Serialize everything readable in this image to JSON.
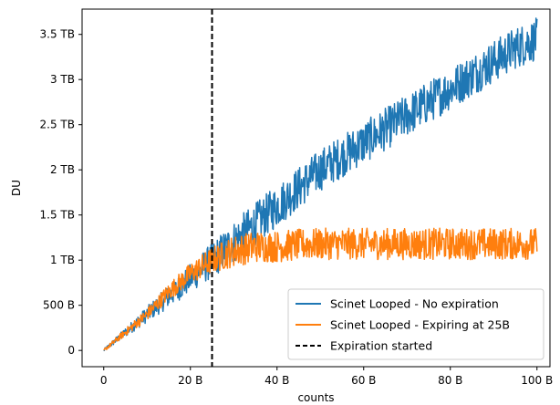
{
  "chart_data": {
    "type": "line",
    "title": "",
    "xlabel": "counts",
    "ylabel": "DU",
    "xlim": [
      -5,
      103
    ],
    "ylim": [
      -0.18,
      3.78
    ],
    "x_ticks": [
      {
        "value": 0,
        "label": "0"
      },
      {
        "value": 20,
        "label": "20 B"
      },
      {
        "value": 40,
        "label": "40 B"
      },
      {
        "value": 60,
        "label": "60 B"
      },
      {
        "value": 80,
        "label": "80 B"
      },
      {
        "value": 100,
        "label": "100 B"
      }
    ],
    "y_ticks": [
      {
        "value": 0,
        "label": "0"
      },
      {
        "value": 0.5,
        "label": "500 B"
      },
      {
        "value": 1,
        "label": "1 TB"
      },
      {
        "value": 1.5,
        "label": "1.5 TB"
      },
      {
        "value": 2,
        "label": "2 TB"
      },
      {
        "value": 2.5,
        "label": "2.5 TB"
      },
      {
        "value": 3,
        "label": "3 TB"
      },
      {
        "value": 3.5,
        "label": "3.5 TB"
      }
    ],
    "grid": false,
    "legend_position": "lower-right",
    "series": [
      {
        "name": "Scinet Looped - No expiration",
        "color": "#1f77b4",
        "x": [
          0,
          5,
          10,
          15,
          20,
          25,
          30,
          35,
          40,
          45,
          50,
          55,
          60,
          65,
          70,
          75,
          80,
          85,
          90,
          95,
          100
        ],
        "y": [
          0,
          0.2,
          0.4,
          0.6,
          0.8,
          1.0,
          1.2,
          1.4,
          1.6,
          1.8,
          2.0,
          2.15,
          2.3,
          2.45,
          2.6,
          2.75,
          2.9,
          3.05,
          3.2,
          3.35,
          3.45
        ]
      },
      {
        "name": "Scinet Looped - Expiring at 25B",
        "color": "#ff7f0e",
        "x": [
          0,
          5,
          10,
          15,
          20,
          25,
          30,
          35,
          40,
          45,
          50,
          55,
          60,
          65,
          70,
          75,
          80,
          85,
          90,
          95,
          100
        ],
        "y": [
          0,
          0.2,
          0.4,
          0.65,
          0.85,
          1.0,
          1.1,
          1.15,
          1.15,
          1.17,
          1.18,
          1.18,
          1.18,
          1.18,
          1.18,
          1.18,
          1.18,
          1.18,
          1.18,
          1.18,
          1.18
        ]
      }
    ],
    "reference_lines": [
      {
        "name": "Expiration started",
        "orientation": "vertical",
        "x": 25,
        "style": "dashed",
        "color": "#000000"
      }
    ]
  }
}
